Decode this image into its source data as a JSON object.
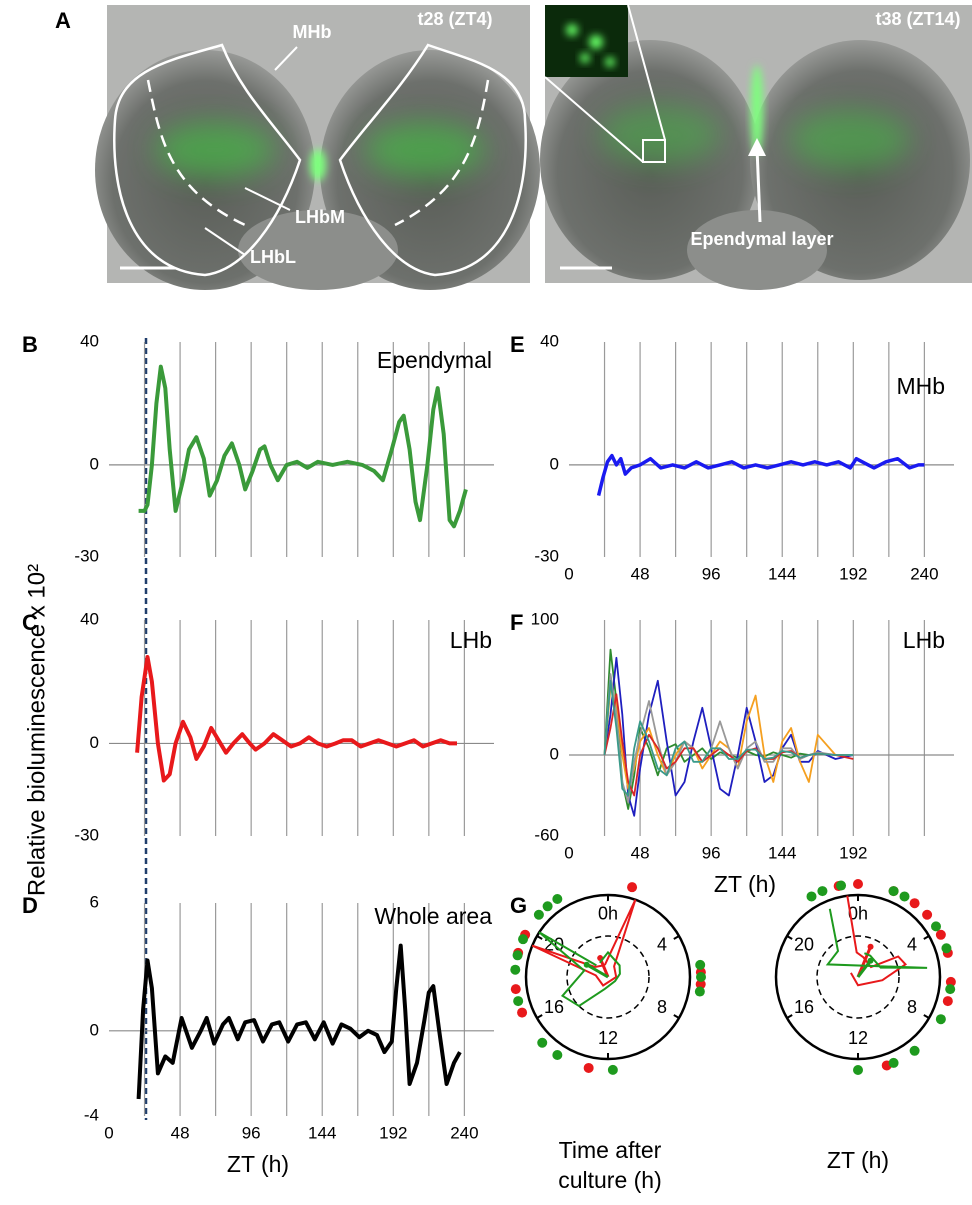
{
  "panel_a": {
    "label": "A",
    "images": [
      {
        "time": "t28 (ZT4)",
        "annotations": [
          "MHb",
          "LHbM",
          "LHbL"
        ]
      },
      {
        "time": "t38 (ZT14)",
        "annotations": [
          "Ependymal layer"
        ]
      }
    ]
  },
  "y_axis_title": "Relative bioluminescence x 10²",
  "chart_data": [
    {
      "type": "line",
      "panel": "B",
      "label": "Ependymal",
      "xlim": [
        0,
        260
      ],
      "ylim": [
        -30,
        40
      ],
      "yticks": [
        -30,
        0,
        40
      ],
      "xgrid": [
        24,
        48,
        72,
        96,
        120,
        144,
        168,
        192,
        216,
        240
      ],
      "series": [
        {
          "color": "#3a9a3a",
          "x": [
            20,
            24,
            26,
            29,
            32,
            35,
            38,
            41,
            45,
            50,
            54,
            59,
            64,
            68,
            73,
            78,
            83,
            88,
            92,
            97,
            102,
            105,
            109,
            114,
            120,
            127,
            134,
            141,
            151,
            161,
            171,
            179,
            185,
            191,
            196,
            199,
            203,
            207,
            210,
            215,
            219,
            222,
            226,
            230,
            233,
            237,
            241
          ],
          "values": [
            -15,
            -15,
            -13,
            0,
            20,
            32,
            25,
            5,
            -15,
            -5,
            5,
            9,
            2,
            -10,
            -5,
            3,
            7,
            0,
            -8,
            -2,
            5,
            6,
            0,
            -5,
            0,
            1,
            -1,
            1,
            0,
            1,
            0,
            -2,
            -5,
            5,
            14,
            16,
            5,
            -12,
            -18,
            0,
            18,
            25,
            10,
            -18,
            -20,
            -15,
            -8
          ]
        }
      ]
    },
    {
      "type": "line",
      "panel": "C",
      "label": "LHb",
      "xlim": [
        0,
        260
      ],
      "ylim": [
        -30,
        40
      ],
      "yticks": [
        -30,
        0,
        40
      ],
      "xgrid": [
        24,
        48,
        72,
        96,
        120,
        144,
        168,
        192,
        216,
        240
      ],
      "series": [
        {
          "color": "#e8191b",
          "x": [
            19,
            22,
            26,
            29,
            33,
            37,
            41,
            45,
            50,
            55,
            59,
            64,
            69,
            74,
            79,
            84,
            90,
            95,
            99,
            105,
            111,
            117,
            123,
            129,
            135,
            141,
            147,
            153,
            158,
            164,
            170,
            176,
            182,
            188,
            194,
            200,
            206,
            212,
            218,
            224,
            230,
            235
          ],
          "values": [
            -3,
            15,
            28,
            20,
            0,
            -12,
            -10,
            0,
            7,
            2,
            -5,
            -1,
            5,
            1,
            -3,
            0,
            3,
            0,
            -2,
            0,
            3,
            1,
            -1,
            0,
            2,
            0,
            -1,
            0,
            1,
            1,
            -1,
            0,
            1,
            0,
            -1,
            0,
            1,
            -1,
            0,
            1,
            0,
            0
          ]
        }
      ]
    },
    {
      "type": "line",
      "panel": "D",
      "label": "Whole area",
      "xlim": [
        0,
        260
      ],
      "ylim": [
        -4,
        6
      ],
      "yticks": [
        -4,
        0,
        6
      ],
      "xticks": [
        0,
        48,
        96,
        144,
        192,
        240
      ],
      "xlabel": "ZT (h)",
      "xgrid": [
        24,
        48,
        72,
        96,
        120,
        144,
        168,
        192,
        216,
        240
      ],
      "series": [
        {
          "color": "#000000",
          "x": [
            20,
            23,
            26,
            29,
            33,
            38,
            43,
            49,
            56,
            62,
            66,
            71,
            77,
            81,
            87,
            92,
            98,
            104,
            110,
            115,
            121,
            127,
            133,
            139,
            145,
            151,
            157,
            163,
            169,
            175,
            181,
            186,
            191,
            194,
            197,
            200,
            203,
            208,
            213,
            216,
            219,
            223,
            228,
            233,
            237
          ],
          "values": [
            -3.2,
            1,
            3.3,
            2,
            -2,
            -1.2,
            -1.5,
            0.6,
            -0.8,
            0,
            0.6,
            -0.6,
            0.3,
            0.6,
            -0.4,
            0.4,
            0.5,
            -0.5,
            0.3,
            0.4,
            -0.5,
            0.3,
            0.4,
            -0.4,
            0.4,
            -0.6,
            0.3,
            0.1,
            -0.3,
            0,
            -0.2,
            -1,
            -0.5,
            2,
            4,
            1,
            -2.5,
            -1.5,
            0.5,
            1.8,
            2.1,
            0,
            -2.5,
            -1.5,
            -1
          ]
        }
      ]
    },
    {
      "type": "line",
      "panel": "E",
      "label": "MHb",
      "xlim": [
        0,
        260
      ],
      "ylim": [
        -30,
        40
      ],
      "yticks": [
        -30,
        0,
        40
      ],
      "xticks": [
        0,
        48,
        96,
        144,
        192,
        240
      ],
      "xgrid": [
        24,
        48,
        72,
        96,
        120,
        144,
        168,
        192,
        216,
        240
      ],
      "series": [
        {
          "color": "#1a1af0",
          "x": [
            20,
            23,
            26,
            29,
            32,
            35,
            38,
            42,
            48,
            55,
            62,
            70,
            78,
            86,
            94,
            102,
            110,
            118,
            126,
            134,
            142,
            150,
            158,
            166,
            174,
            182,
            190,
            194,
            198,
            206,
            214,
            222,
            230,
            236,
            240
          ],
          "values": [
            -10,
            -4,
            1,
            3,
            0,
            2,
            -3,
            -1,
            0,
            2,
            -1,
            0,
            -1,
            1,
            -1,
            0,
            1,
            -1,
            0,
            -1,
            0,
            1,
            0,
            1,
            0,
            1,
            -1,
            2,
            1,
            -1,
            1,
            2,
            -1,
            0,
            0
          ]
        }
      ]
    },
    {
      "type": "line",
      "panel": "F",
      "label": "LHb",
      "xlim": [
        0,
        260
      ],
      "ylim": [
        -60,
        100
      ],
      "yticks": [
        -60,
        0,
        100
      ],
      "xticks": [
        0,
        48,
        96,
        144,
        192
      ],
      "xlabel": "ZT (h)",
      "xgrid": [
        24,
        48,
        72,
        96,
        120,
        144,
        168,
        192,
        216,
        240
      ],
      "x": [
        24,
        28,
        32,
        36,
        40,
        44,
        48,
        54,
        60,
        66,
        72,
        78,
        84,
        90,
        96,
        102,
        108,
        114,
        120,
        126,
        132,
        138,
        144,
        150,
        156,
        162,
        168,
        180,
        192
      ],
      "series": [
        {
          "color": "#2e8b2e",
          "values": [
            0,
            78,
            40,
            -20,
            -40,
            -15,
            20,
            5,
            -15,
            5,
            8,
            -5,
            0,
            5,
            -3,
            2,
            0,
            -2,
            3,
            0,
            -1,
            2,
            0,
            -2,
            1,
            0,
            1,
            0,
            0
          ]
        },
        {
          "color": "#1f1fbf",
          "values": [
            0,
            30,
            72,
            30,
            -30,
            -45,
            -10,
            30,
            55,
            10,
            -30,
            -20,
            10,
            35,
            5,
            -25,
            -30,
            0,
            35,
            10,
            -20,
            -15,
            5,
            15,
            -5,
            -5,
            3,
            -3,
            0
          ]
        },
        {
          "color": "#f5a020",
          "values": [
            0,
            50,
            40,
            0,
            -25,
            -10,
            10,
            20,
            0,
            -15,
            0,
            10,
            5,
            -10,
            0,
            10,
            5,
            -10,
            25,
            44,
            0,
            -20,
            10,
            20,
            -5,
            -20,
            15,
            0,
            0
          ]
        },
        {
          "color": "#999999",
          "values": [
            0,
            60,
            30,
            -20,
            -35,
            -5,
            15,
            40,
            10,
            -15,
            -5,
            10,
            5,
            -5,
            5,
            25,
            5,
            -10,
            5,
            10,
            -5,
            -5,
            5,
            5,
            -3,
            0,
            2,
            0,
            0
          ]
        },
        {
          "color": "#d62728",
          "values": [
            0,
            20,
            45,
            10,
            -20,
            -30,
            0,
            15,
            5,
            -10,
            -5,
            5,
            5,
            -5,
            0,
            5,
            0,
            -5,
            3,
            5,
            -3,
            -3,
            2,
            3,
            -2,
            0,
            1,
            0,
            -3
          ]
        },
        {
          "color": "#3a9a8a",
          "values": [
            0,
            55,
            20,
            -25,
            -30,
            5,
            25,
            10,
            -10,
            -15,
            5,
            10,
            -5,
            -5,
            5,
            5,
            -3,
            -3,
            4,
            4,
            -3,
            -2,
            3,
            2,
            -2,
            0,
            1,
            0,
            0
          ]
        }
      ]
    },
    {
      "type": "polar",
      "panel": "G",
      "xlim": [
        0,
        24
      ],
      "caption": [
        "Time after",
        "culture (h)"
      ],
      "xticks": [
        {
          "value": 0,
          "label": "0h"
        },
        4,
        8,
        12,
        16,
        20
      ],
      "series": [
        {
          "color": "#e8191b",
          "dots": [
            1.0,
            19.0,
            19.8,
            17.5,
            16.5,
            12.8,
            5.8,
            6.3
          ],
          "rose_hours": [
            23,
            1.3,
            2,
            6,
            14,
            18.5,
            19.5,
            20.5,
            23
          ],
          "rose_radii": [
            0.15,
            1.0,
            0.15,
            0.1,
            0.12,
            0.15,
            1.0,
            0.2,
            0.15
          ],
          "vector": {
            "hour": 22.5,
            "length": 0.25
          }
        },
        {
          "color": "#1e9a1e",
          "dots": [
            18.3,
            18.9,
            19.6,
            20.8,
            21.3,
            17.0,
            15.0,
            14.2,
            11.8,
            5.5,
            6.0,
            6.6,
            21.8
          ],
          "rose_hours": [
            21,
            20.2,
            19,
            16.5,
            15,
            13,
            8,
            5,
            3,
            0,
            22
          ],
          "rose_radii": [
            0.2,
            1.0,
            0.3,
            0.6,
            0.5,
            0.15,
            0.1,
            0.15,
            0.2,
            0.3,
            0.2
          ],
          "vector": {
            "hour": 20,
            "length": 0.3
          }
        }
      ]
    },
    {
      "type": "polar",
      "xlim": [
        0,
        24
      ],
      "caption": [
        "ZT (h)"
      ],
      "xticks": [
        {
          "value": 0,
          "label": "0h"
        },
        4,
        8,
        12,
        16,
        20
      ],
      "series": [
        {
          "color": "#e8191b",
          "dots": [
            23.2,
            0.0,
            1.5,
            2.5,
            3.2,
            4.2,
            5.0,
            6.2,
            7.0,
            10.8
          ],
          "rose_hours": [
            23.5,
            23.8,
            1,
            3.5,
            4.2,
            5,
            6.5,
            12,
            20
          ],
          "rose_radii": [
            1.0,
            0.3,
            0.25,
            0.2,
            0.55,
            0.6,
            0.3,
            0.1,
            0.1
          ],
          "vector": {
            "hour": 1.5,
            "length": 0.4
          }
        },
        {
          "color": "#1e9a1e",
          "dots": [
            22.5,
            23.3,
            1.5,
            2.0,
            3.8,
            4.8,
            6.5,
            7.8,
            9.5,
            10.5,
            12.0,
            22.0
          ],
          "rose_hours": [
            22.5,
            21.5,
            19.5,
            5.5,
            4.5,
            2,
            1
          ],
          "rose_radii": [
            0.9,
            0.4,
            0.4,
            0.85,
            0.3,
            0.3,
            0.3
          ],
          "vector": {
            "hour": 2.5,
            "length": 0.25
          }
        }
      ]
    }
  ]
}
